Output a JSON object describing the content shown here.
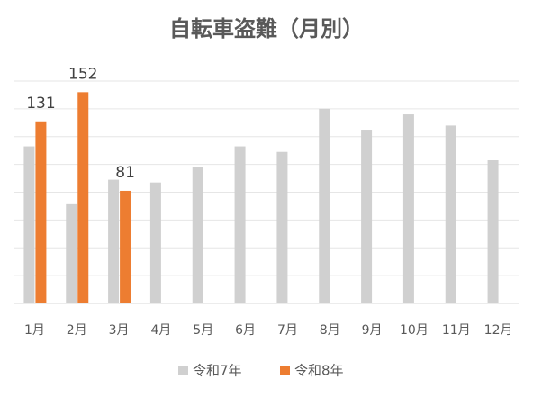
{
  "chart_data": {
    "type": "bar",
    "title": "自転車盗難（月別）",
    "categories": [
      "1月",
      "2月",
      "3月",
      "4月",
      "5月",
      "6月",
      "7月",
      "8月",
      "9月",
      "10月",
      "11月",
      "12月"
    ],
    "series": [
      {
        "name": "令和7年",
        "color": "#d0d0d0",
        "values": [
          113,
          72,
          89,
          87,
          98,
          113,
          109,
          140,
          125,
          136,
          128,
          103
        ]
      },
      {
        "name": "令和8年",
        "color": "#ed7d31",
        "values": [
          131,
          152,
          81,
          null,
          null,
          null,
          null,
          null,
          null,
          null,
          null,
          null
        ]
      }
    ],
    "data_labels_series": 1,
    "ylim": [
      0,
      160
    ],
    "yticks": [
      0,
      20,
      40,
      60,
      80,
      100,
      120,
      140,
      160
    ],
    "grid": true,
    "legend": "bottom"
  }
}
